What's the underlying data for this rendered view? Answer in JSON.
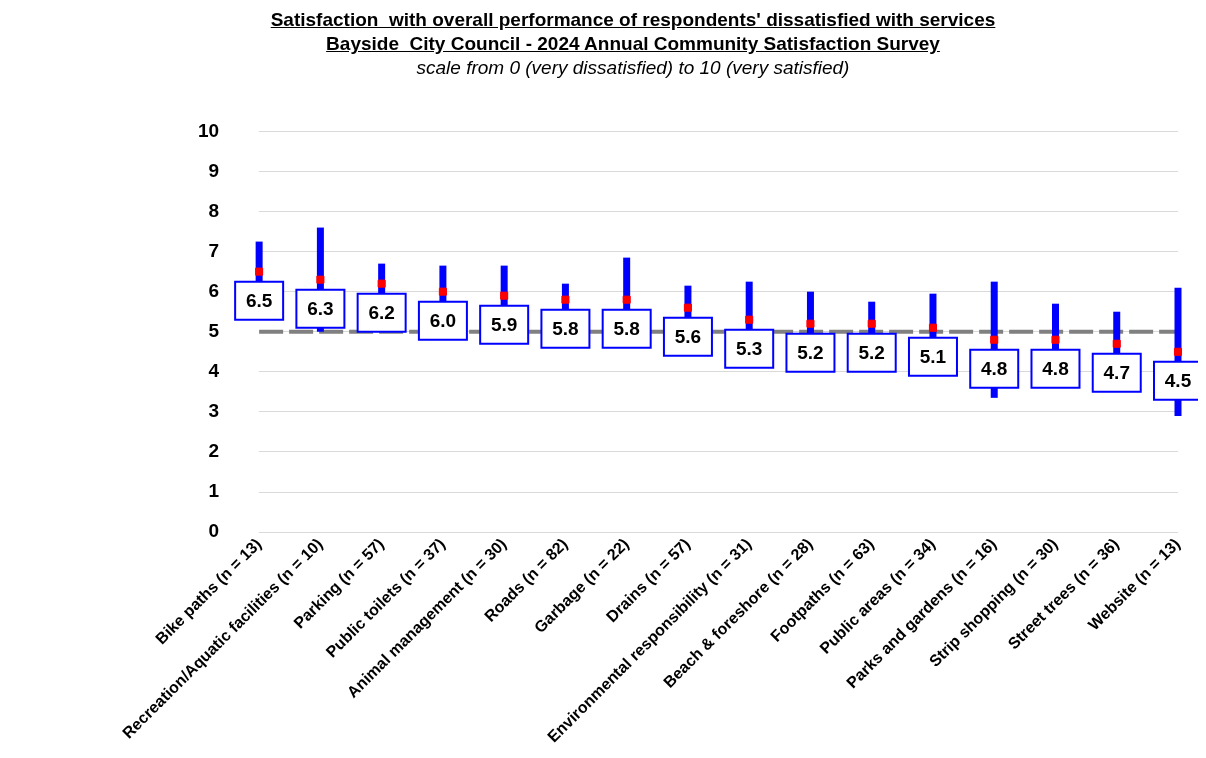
{
  "chart_data": {
    "type": "scatter",
    "title": "Satisfaction  with overall performance of respondents' dissatisfied with services\nBayside  City Council - 2024 Annual Community Satisfaction Survey",
    "subtitle": "scale from 0 (very dissatisfied) to 10 (very satisfied)",
    "categories": [
      "Bike paths (n = 13)",
      "Recreation/Aquatic facilities (n = 10)",
      "Parking (n = 57)",
      "Public toilets (n = 37)",
      "Animal management (n = 30)",
      "Roads (n = 82)",
      "Garbage (n = 22)",
      "Drains (n = 57)",
      "Environmental responsibility (n = 31)",
      "Beach & foreshore (n = 28)",
      "Footpaths (n = 63)",
      "Public areas (n = 34)",
      "Parks and gardens (n = 16)",
      "Strip shopping (n = 30)",
      "Street trees (n = 36)",
      "Website (n = 13)"
    ],
    "values": [
      6.5,
      6.3,
      6.2,
      6.0,
      5.9,
      5.8,
      5.8,
      5.6,
      5.3,
      5.2,
      5.2,
      5.1,
      4.8,
      4.8,
      4.7,
      4.5
    ],
    "errors": [
      0.75,
      1.3,
      0.5,
      0.65,
      0.75,
      0.4,
      1.05,
      0.55,
      0.95,
      0.8,
      0.55,
      0.85,
      1.45,
      0.9,
      0.8,
      1.6
    ],
    "value_labels": [
      "6.5",
      "6.3",
      "6.2",
      "6.0",
      "5.9",
      "5.8",
      "5.8",
      "5.6",
      "5.3",
      "5.2",
      "5.2",
      "5.1",
      "4.8",
      "4.8",
      "4.7",
      "4.5"
    ],
    "color": "#ff0000",
    "marker": "square",
    "ylim": [
      0,
      10
    ],
    "yticks": [
      0,
      1,
      2,
      3,
      4,
      5,
      6,
      7,
      8,
      9,
      10
    ],
    "grid": "y",
    "ref_lines": [
      {
        "axis": "y",
        "value": 5,
        "color": "#808080",
        "line_style": "dashed"
      }
    ]
  }
}
